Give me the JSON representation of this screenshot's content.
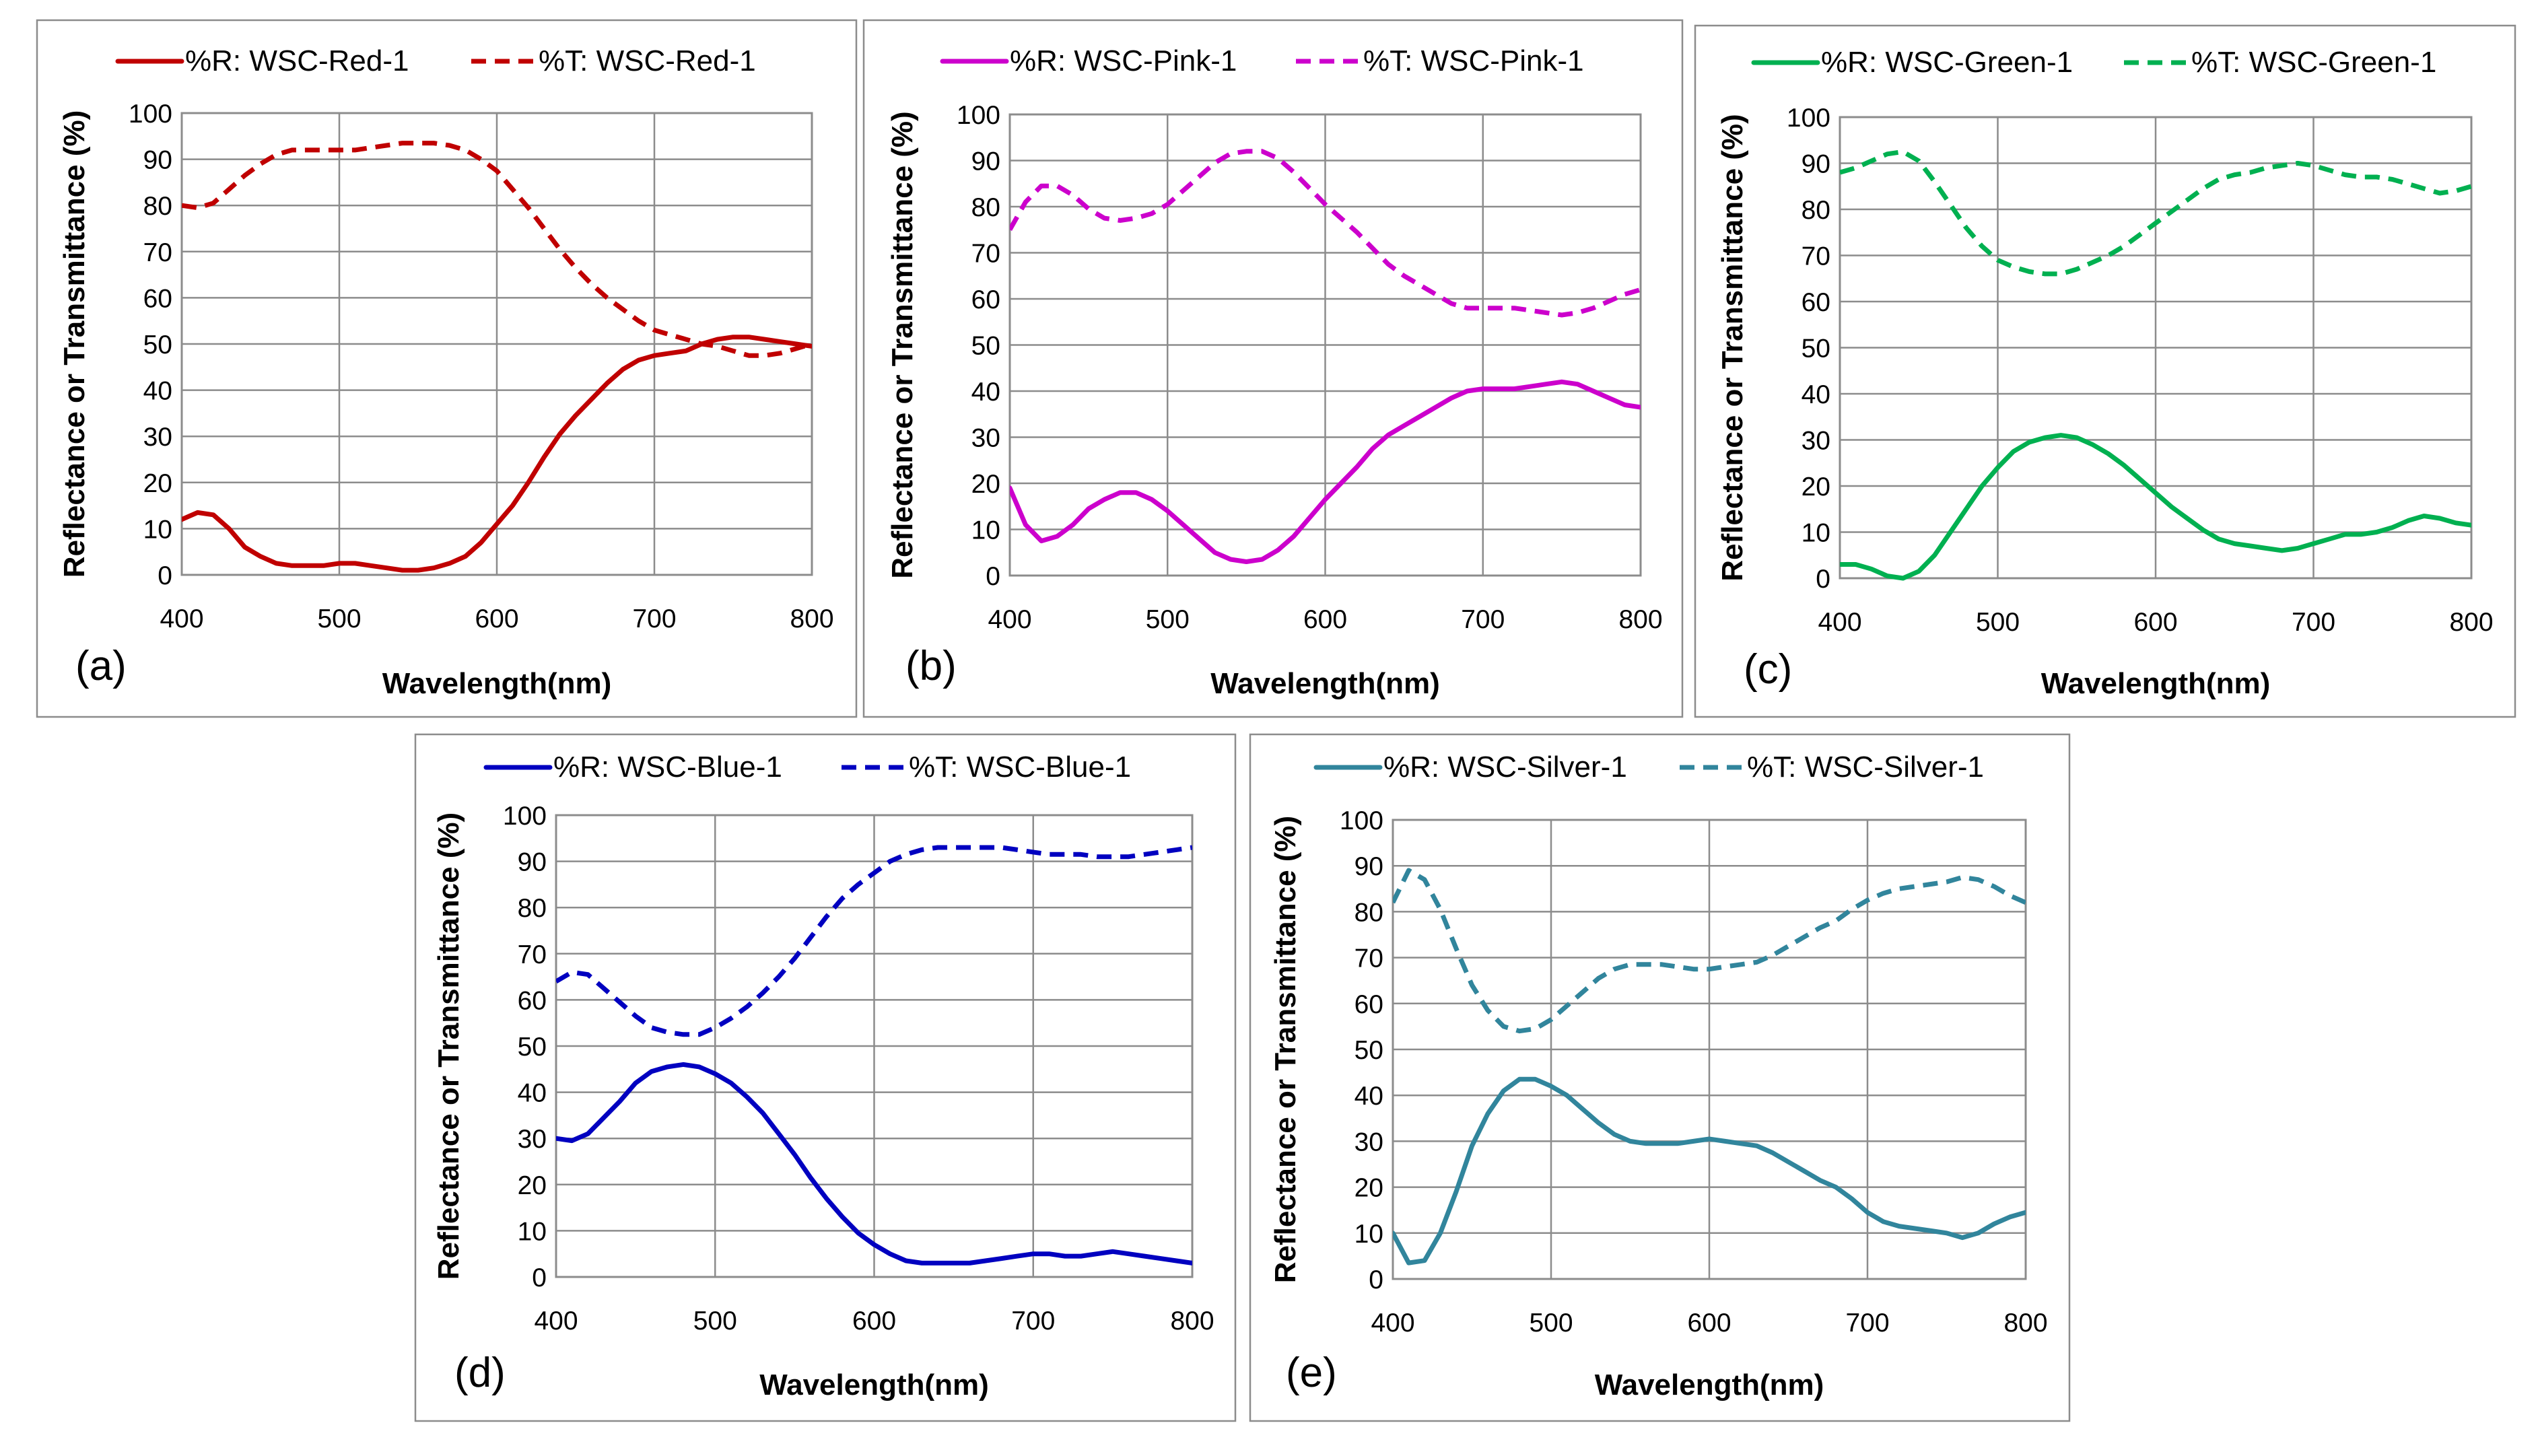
{
  "chart_data": [
    {
      "type": "line",
      "panel_label": "(a)",
      "color": "#c00000",
      "xlabel": "Wavelength(nm)",
      "ylabel": "Reflectance or Transmittance  (%)",
      "xlim": [
        400,
        800
      ],
      "ylim": [
        0,
        100
      ],
      "xticks": [
        "400",
        "500",
        "600",
        "700",
        "800"
      ],
      "yticks": [
        "0",
        "10",
        "20",
        "30",
        "40",
        "50",
        "60",
        "70",
        "80",
        "90",
        "100"
      ],
      "series": [
        {
          "name": "%R: WSC-Red-1",
          "style": "solid",
          "x": [
            400,
            410,
            420,
            430,
            440,
            450,
            460,
            470,
            480,
            490,
            500,
            510,
            520,
            530,
            540,
            550,
            560,
            570,
            580,
            590,
            600,
            610,
            620,
            630,
            640,
            650,
            660,
            670,
            680,
            690,
            700,
            710,
            720,
            730,
            740,
            750,
            760,
            770,
            780,
            790,
            800
          ],
          "y": [
            12,
            13.5,
            13,
            10,
            6,
            4,
            2.5,
            2,
            2,
            2,
            2.5,
            2.5,
            2,
            1.5,
            1,
            1,
            1.5,
            2.5,
            4,
            7,
            11,
            15,
            20,
            25.5,
            30.5,
            34.5,
            38,
            41.5,
            44.5,
            46.5,
            47.5,
            48,
            48.5,
            50,
            51,
            51.5,
            51.5,
            51,
            50.5,
            50,
            49.5
          ]
        },
        {
          "name": "%T: WSC-Red-1",
          "style": "dashed",
          "x": [
            400,
            410,
            420,
            430,
            440,
            450,
            460,
            470,
            480,
            490,
            500,
            510,
            520,
            530,
            540,
            550,
            560,
            570,
            580,
            590,
            600,
            610,
            620,
            630,
            640,
            650,
            660,
            670,
            680,
            690,
            700,
            710,
            720,
            730,
            740,
            750,
            760,
            770,
            780,
            790,
            800
          ],
          "y": [
            80,
            79.5,
            80.5,
            83.5,
            86.5,
            89,
            91,
            92,
            92,
            92,
            92,
            92,
            92.5,
            93,
            93.5,
            93.5,
            93.5,
            93,
            92,
            90,
            87.5,
            83.5,
            79.5,
            75,
            70.5,
            66.5,
            63,
            60,
            57.5,
            55,
            53,
            52,
            51,
            50,
            49.5,
            48.5,
            47.5,
            47.5,
            48,
            49,
            50
          ]
        }
      ]
    },
    {
      "type": "line",
      "panel_label": "(b)",
      "color": "#cc00cc",
      "xlabel": "Wavelength(nm)",
      "ylabel": "Reflectance or Transmittance  (%)",
      "xlim": [
        400,
        800
      ],
      "ylim": [
        0,
        100
      ],
      "xticks": [
        "400",
        "500",
        "600",
        "700",
        "800"
      ],
      "yticks": [
        "0",
        "10",
        "20",
        "30",
        "40",
        "50",
        "60",
        "70",
        "80",
        "90",
        "100"
      ],
      "series": [
        {
          "name": "%R: WSC-Pink-1",
          "style": "solid",
          "x": [
            400,
            410,
            420,
            430,
            440,
            450,
            460,
            470,
            480,
            490,
            500,
            510,
            520,
            530,
            540,
            550,
            560,
            570,
            580,
            590,
            600,
            610,
            620,
            630,
            640,
            650,
            660,
            670,
            680,
            690,
            700,
            710,
            720,
            730,
            740,
            750,
            760,
            770,
            780,
            790,
            800
          ],
          "y": [
            19,
            11,
            7.5,
            8.5,
            11,
            14.5,
            16.5,
            18,
            18,
            16.5,
            14,
            11,
            8,
            5,
            3.5,
            3,
            3.5,
            5.5,
            8.5,
            12.5,
            16.5,
            20,
            23.5,
            27.5,
            30.5,
            32.5,
            34.5,
            36.5,
            38.5,
            40,
            40.5,
            40.5,
            40.5,
            41,
            41.5,
            42,
            41.5,
            40,
            38.5,
            37,
            36.5
          ]
        },
        {
          "name": "%T: WSC-Pink-1",
          "style": "dashed",
          "x": [
            400,
            410,
            420,
            430,
            440,
            450,
            460,
            470,
            480,
            490,
            500,
            510,
            520,
            530,
            540,
            550,
            560,
            570,
            580,
            590,
            600,
            610,
            620,
            630,
            640,
            650,
            660,
            670,
            680,
            690,
            700,
            710,
            720,
            730,
            740,
            750,
            760,
            770,
            780,
            790,
            800
          ],
          "y": [
            75,
            81,
            84.5,
            84.5,
            82.5,
            79.5,
            77.5,
            77,
            77.5,
            78.5,
            80.5,
            83.5,
            86.5,
            89.5,
            91.5,
            92,
            92,
            90.5,
            87.5,
            84,
            80.5,
            77.5,
            74.5,
            71,
            67.5,
            65,
            63,
            61,
            59,
            58,
            58,
            58,
            58,
            57.5,
            57,
            56.5,
            57,
            58,
            59.5,
            61,
            62
          ]
        }
      ]
    },
    {
      "type": "line",
      "panel_label": "(c)",
      "color": "#00b050",
      "xlabel": "Wavelength(nm)",
      "ylabel": "Reflectance or Transmittance  (%)",
      "xlim": [
        400,
        800
      ],
      "ylim": [
        0,
        100
      ],
      "xticks": [
        "400",
        "500",
        "600",
        "700",
        "800"
      ],
      "yticks": [
        "0",
        "10",
        "20",
        "30",
        "40",
        "50",
        "60",
        "70",
        "80",
        "90",
        "100"
      ],
      "series": [
        {
          "name": "%R: WSC-Green-1",
          "style": "solid",
          "x": [
            400,
            410,
            420,
            430,
            440,
            450,
            460,
            470,
            480,
            490,
            500,
            510,
            520,
            530,
            540,
            550,
            560,
            570,
            580,
            590,
            600,
            610,
            620,
            630,
            640,
            650,
            660,
            670,
            680,
            690,
            700,
            710,
            720,
            730,
            740,
            750,
            760,
            770,
            780,
            790,
            800
          ],
          "y": [
            3,
            3,
            2,
            0.5,
            0,
            1.5,
            5,
            10,
            15,
            20,
            24,
            27.5,
            29.5,
            30.5,
            31,
            30.5,
            29,
            27,
            24.5,
            21.5,
            18.5,
            15.5,
            13,
            10.5,
            8.5,
            7.5,
            7,
            6.5,
            6,
            6.5,
            7.5,
            8.5,
            9.5,
            9.5,
            10,
            11,
            12.5,
            13.5,
            13,
            12,
            11.5
          ]
        },
        {
          "name": "%T: WSC-Green-1",
          "style": "dashed",
          "x": [
            400,
            410,
            420,
            430,
            440,
            450,
            460,
            470,
            480,
            490,
            500,
            510,
            520,
            530,
            540,
            550,
            560,
            570,
            580,
            590,
            600,
            610,
            620,
            630,
            640,
            650,
            660,
            670,
            680,
            690,
            700,
            710,
            720,
            730,
            740,
            750,
            760,
            770,
            780,
            790,
            800
          ],
          "y": [
            88,
            89,
            90.5,
            92,
            92.5,
            90.5,
            86,
            81,
            76,
            72,
            69,
            67.5,
            66.5,
            66,
            66,
            67,
            68.5,
            70,
            72,
            74.5,
            77,
            79.5,
            82,
            84.5,
            86.5,
            87.5,
            88,
            89,
            89.5,
            90,
            89.5,
            88.5,
            87.5,
            87,
            87,
            86.5,
            85.5,
            84.5,
            83.5,
            84,
            85
          ]
        }
      ]
    },
    {
      "type": "line",
      "panel_label": "(d)",
      "color": "#0000c0",
      "xlabel": "Wavelength(nm)",
      "ylabel": "Reflectance or Transmittance  (%)",
      "xlim": [
        400,
        800
      ],
      "ylim": [
        0,
        100
      ],
      "xticks": [
        "400",
        "500",
        "600",
        "700",
        "800"
      ],
      "yticks": [
        "0",
        "10",
        "20",
        "30",
        "40",
        "50",
        "60",
        "70",
        "80",
        "90",
        "100"
      ],
      "series": [
        {
          "name": "%R: WSC-Blue-1",
          "style": "solid",
          "x": [
            400,
            410,
            420,
            430,
            440,
            450,
            460,
            470,
            480,
            490,
            500,
            510,
            520,
            530,
            540,
            550,
            560,
            570,
            580,
            590,
            600,
            610,
            620,
            630,
            640,
            650,
            660,
            670,
            680,
            690,
            700,
            710,
            720,
            730,
            740,
            750,
            760,
            770,
            780,
            790,
            800
          ],
          "y": [
            30,
            29.5,
            31,
            34.5,
            38,
            42,
            44.5,
            45.5,
            46,
            45.5,
            44,
            42,
            39,
            35.5,
            31,
            26.5,
            21.5,
            17,
            13,
            9.5,
            7,
            5,
            3.5,
            3,
            3,
            3,
            3,
            3.5,
            4,
            4.5,
            5,
            5,
            4.5,
            4.5,
            5,
            5.5,
            5,
            4.5,
            4,
            3.5,
            3
          ]
        },
        {
          "name": "%T: WSC-Blue-1",
          "style": "dashed",
          "x": [
            400,
            410,
            420,
            430,
            440,
            450,
            460,
            470,
            480,
            490,
            500,
            510,
            520,
            530,
            540,
            550,
            560,
            570,
            580,
            590,
            600,
            610,
            620,
            630,
            640,
            650,
            660,
            670,
            680,
            690,
            700,
            710,
            720,
            730,
            740,
            750,
            760,
            770,
            780,
            790,
            800
          ],
          "y": [
            64,
            66,
            65.5,
            62.5,
            59.5,
            56.5,
            54,
            53,
            52.5,
            52.5,
            54,
            56,
            58.5,
            61.5,
            65,
            69,
            73.5,
            78,
            82,
            85,
            87.5,
            90,
            91.5,
            92.5,
            93,
            93,
            93,
            93,
            93,
            92.5,
            92,
            91.5,
            91.5,
            91.5,
            91,
            91,
            91,
            91.5,
            92,
            92.5,
            93
          ]
        }
      ]
    },
    {
      "type": "line",
      "panel_label": "(e)",
      "color": "#31859c",
      "xlabel": "Wavelength(nm)",
      "ylabel": "Reflectance or Transmittance  (%)",
      "xlim": [
        400,
        800
      ],
      "ylim": [
        0,
        100
      ],
      "xticks": [
        "400",
        "500",
        "600",
        "700",
        "800"
      ],
      "yticks": [
        "0",
        "10",
        "20",
        "30",
        "40",
        "50",
        "60",
        "70",
        "80",
        "90",
        "100"
      ],
      "series": [
        {
          "name": "%R: WSC-Silver-1",
          "style": "solid",
          "x": [
            400,
            410,
            420,
            430,
            440,
            450,
            460,
            470,
            480,
            490,
            500,
            510,
            520,
            530,
            540,
            550,
            560,
            570,
            580,
            590,
            600,
            610,
            620,
            630,
            640,
            650,
            660,
            670,
            680,
            690,
            700,
            710,
            720,
            730,
            740,
            750,
            760,
            770,
            780,
            790,
            800
          ],
          "y": [
            10,
            3.5,
            4,
            10,
            19,
            29,
            36,
            41,
            43.5,
            43.5,
            42,
            40,
            37,
            34,
            31.5,
            30,
            29.5,
            29.5,
            29.5,
            30,
            30.5,
            30,
            29.5,
            29,
            27.5,
            25.5,
            23.5,
            21.5,
            20,
            17.5,
            14.5,
            12.5,
            11.5,
            11,
            10.5,
            10,
            9,
            10,
            12,
            13.5,
            14.5
          ]
        },
        {
          "name": "%T: WSC-Silver-1",
          "style": "dashed",
          "x": [
            400,
            410,
            420,
            430,
            440,
            450,
            460,
            470,
            480,
            490,
            500,
            510,
            520,
            530,
            540,
            550,
            560,
            570,
            580,
            590,
            600,
            610,
            620,
            630,
            640,
            650,
            660,
            670,
            680,
            690,
            700,
            710,
            720,
            730,
            740,
            750,
            760,
            770,
            780,
            790,
            800
          ],
          "y": [
            82,
            89,
            87,
            80.5,
            72,
            64,
            58.5,
            55,
            54,
            54.5,
            56.5,
            59.5,
            62.5,
            65.5,
            67.5,
            68.5,
            68.5,
            68.5,
            68,
            67.5,
            67.5,
            68,
            68.5,
            69,
            70.5,
            72.5,
            74.5,
            76.5,
            78,
            80.5,
            82.5,
            84,
            85,
            85.5,
            86,
            86.5,
            87.5,
            87,
            85.5,
            83.5,
            82
          ]
        }
      ]
    }
  ]
}
